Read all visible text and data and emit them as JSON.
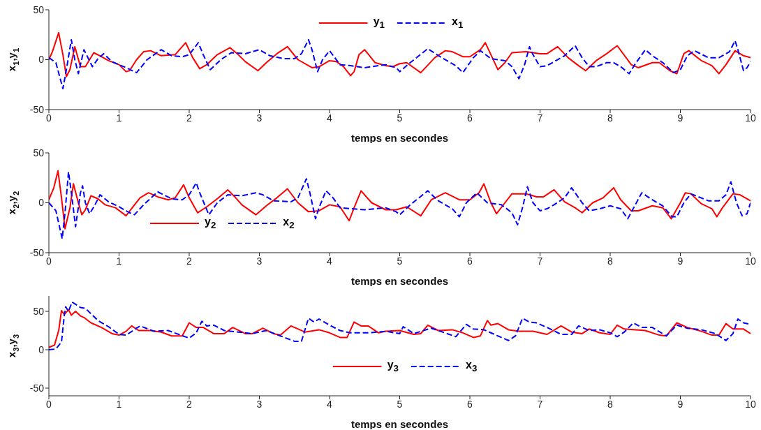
{
  "chart_data": [
    {
      "type": "line",
      "xlabel": "temps en secondes",
      "ylabel": "x$_{1}$,y$_{1}$",
      "xlim": [
        0,
        10
      ],
      "xticks": [
        0,
        1,
        2,
        3,
        4,
        5,
        6,
        7,
        8,
        9,
        10
      ],
      "ylim": [
        -50,
        50
      ],
      "yticks": [
        -50,
        0,
        50
      ],
      "grid": false,
      "legend": "top",
      "series": [
        {
          "name": "y$_{1}$",
          "color": "#ff0000",
          "line_style": "solid",
          "x": [
            0,
            0.05,
            0.14,
            0.2,
            0.25,
            0.3,
            0.37,
            0.45,
            0.52,
            0.64,
            0.75,
            0.85,
            1.0,
            1.1,
            1.15,
            1.25,
            1.35,
            1.45,
            1.6,
            1.8,
            1.95,
            2.05,
            2.15,
            2.25,
            2.4,
            2.58,
            2.7,
            2.8,
            2.98,
            3.1,
            3.25,
            3.4,
            3.55,
            3.75,
            3.85,
            4.0,
            4.1,
            4.2,
            4.3,
            4.35,
            4.42,
            4.5,
            4.65,
            4.8,
            4.9,
            5.0,
            5.1,
            5.3,
            5.5,
            5.65,
            5.75,
            5.9,
            6.0,
            6.15,
            6.22,
            6.3,
            6.4,
            6.5,
            6.6,
            6.8,
            7.0,
            7.1,
            7.25,
            7.4,
            7.55,
            7.65,
            7.8,
            7.95,
            8.1,
            8.3,
            8.4,
            8.6,
            8.7,
            8.85,
            8.95,
            9.05,
            9.12,
            9.3,
            9.45,
            9.55,
            9.65,
            9.78,
            9.9,
            10
          ],
          "values": [
            0,
            8,
            27,
            5,
            -17,
            -10,
            13,
            -7,
            -7,
            7,
            3,
            -1,
            -5,
            -12,
            -11,
            0,
            8,
            9,
            4,
            5,
            17,
            2,
            -9,
            -5,
            5,
            12,
            5,
            -2,
            -11,
            -3,
            6,
            13,
            0,
            -8,
            -7,
            -1,
            -2,
            -7,
            -16,
            -12,
            5,
            10,
            -3,
            -6,
            -7,
            -4,
            -3,
            -13,
            2,
            9,
            8,
            3,
            3,
            10,
            17,
            5,
            -10,
            -3,
            7,
            8,
            6,
            6,
            13,
            2,
            -6,
            -11,
            -1,
            6,
            14,
            -5,
            -8,
            -3,
            -3,
            -11,
            -14,
            6,
            9,
            -1,
            -6,
            -14,
            -5,
            9,
            4,
            2
          ]
        },
        {
          "name": "x$_{1}$",
          "color": "#0000ff",
          "line_style": "dashed",
          "x": [
            0,
            0.1,
            0.2,
            0.25,
            0.32,
            0.37,
            0.42,
            0.5,
            0.55,
            0.62,
            0.7,
            0.78,
            0.9,
            1.0,
            1.1,
            1.25,
            1.4,
            1.6,
            1.75,
            1.9,
            2.0,
            2.13,
            2.2,
            2.3,
            2.45,
            2.6,
            2.8,
            3.0,
            3.15,
            3.35,
            3.5,
            3.6,
            3.7,
            3.75,
            3.83,
            3.9,
            4.0,
            4.15,
            4.3,
            4.5,
            4.8,
            4.95,
            5.0,
            5.15,
            5.4,
            5.6,
            5.8,
            5.9,
            6.05,
            6.15,
            6.3,
            6.5,
            6.6,
            6.7,
            6.78,
            6.85,
            6.9,
            7.0,
            7.1,
            7.2,
            7.35,
            7.5,
            7.6,
            7.7,
            7.8,
            7.95,
            8.05,
            8.15,
            8.27,
            8.35,
            8.5,
            8.6,
            8.75,
            8.9,
            9.0,
            9.1,
            9.2,
            9.4,
            9.55,
            9.7,
            9.78,
            9.82,
            9.9,
            9.95,
            10
          ],
          "values": [
            2,
            -3,
            -29,
            -10,
            20,
            0,
            -14,
            10,
            3,
            -7,
            1,
            6,
            -2,
            -5,
            -8,
            -13,
            0,
            10,
            4,
            3,
            5,
            17,
            5,
            -10,
            0,
            7,
            6,
            10,
            4,
            1,
            1,
            6,
            20,
            10,
            -12,
            0,
            9,
            -5,
            -6,
            -8,
            -5,
            -8,
            -12,
            -3,
            11,
            2,
            -6,
            -13,
            2,
            9,
            1,
            -1,
            -7,
            -19,
            -5,
            13,
            5,
            -7,
            -6,
            -2,
            4,
            14,
            2,
            -7,
            -7,
            -3,
            -3,
            -7,
            -14,
            -5,
            10,
            4,
            -3,
            -13,
            -10,
            4,
            9,
            2,
            2,
            8,
            19,
            10,
            -11,
            -8,
            -2
          ]
        }
      ]
    },
    {
      "type": "line",
      "xlabel": "temps en secondes",
      "ylabel": "x$_{2}$,y$_{2}$",
      "xlim": [
        0,
        10
      ],
      "xticks": [
        0,
        1,
        2,
        3,
        4,
        5,
        6,
        7,
        8,
        9,
        10
      ],
      "ylim": [
        -50,
        50
      ],
      "yticks": [
        -50,
        0,
        50
      ],
      "grid": false,
      "legend": "bottom left",
      "series": [
        {
          "name": "y$_{2}$",
          "color": "#ff0000",
          "line_style": "solid",
          "x": [
            0,
            0.07,
            0.13,
            0.18,
            0.23,
            0.3,
            0.35,
            0.42,
            0.47,
            0.52,
            0.6,
            0.7,
            0.8,
            0.95,
            1.1,
            1.2,
            1.3,
            1.42,
            1.55,
            1.7,
            1.8,
            1.92,
            2.0,
            2.12,
            2.25,
            2.4,
            2.55,
            2.65,
            2.75,
            2.95,
            3.1,
            3.25,
            3.4,
            3.55,
            3.7,
            3.85,
            4.0,
            4.15,
            4.28,
            4.35,
            4.45,
            4.6,
            4.8,
            4.95,
            5.1,
            5.3,
            5.45,
            5.65,
            5.85,
            6.0,
            6.13,
            6.2,
            6.3,
            6.38,
            6.5,
            6.6,
            6.8,
            6.95,
            7.05,
            7.2,
            7.35,
            7.5,
            7.6,
            7.75,
            7.9,
            8.05,
            8.15,
            8.3,
            8.4,
            8.6,
            8.75,
            8.87,
            9.0,
            9.07,
            9.15,
            9.3,
            9.45,
            9.52,
            9.6,
            9.75,
            9.85,
            10
          ],
          "values": [
            3,
            15,
            32,
            5,
            -26,
            -5,
            19,
            0,
            -12,
            -7,
            7,
            4,
            -2,
            -5,
            -13,
            -4,
            5,
            10,
            6,
            3,
            5,
            18,
            5,
            -10,
            -4,
            4,
            13,
            6,
            -2,
            -12,
            -3,
            5,
            14,
            0,
            -9,
            -8,
            -2,
            -4,
            -18,
            -5,
            12,
            0,
            -7,
            -7,
            -4,
            -13,
            3,
            10,
            3,
            3,
            10,
            19,
            0,
            -11,
            0,
            9,
            9,
            6,
            6,
            13,
            1,
            -5,
            -10,
            0,
            5,
            15,
            3,
            -8,
            -8,
            -3,
            -5,
            -16,
            0,
            10,
            9,
            -1,
            -6,
            -14,
            -5,
            9,
            8,
            2
          ]
        },
        {
          "name": "x$_{2}$",
          "color": "#0000ff",
          "line_style": "dashed",
          "x": [
            0,
            0.1,
            0.19,
            0.23,
            0.28,
            0.33,
            0.38,
            0.45,
            0.48,
            0.52,
            0.58,
            0.65,
            0.73,
            0.85,
            1.0,
            1.15,
            1.22,
            1.35,
            1.55,
            1.75,
            1.9,
            2.0,
            2.1,
            2.15,
            2.28,
            2.4,
            2.55,
            2.75,
            2.95,
            3.05,
            3.2,
            3.45,
            3.55,
            3.67,
            3.72,
            3.8,
            3.85,
            3.95,
            4.05,
            4.15,
            4.5,
            4.8,
            4.95,
            5.0,
            5.15,
            5.4,
            5.55,
            5.75,
            5.85,
            5.95,
            6.1,
            6.25,
            6.45,
            6.6,
            6.68,
            6.75,
            6.82,
            6.9,
            7.0,
            7.1,
            7.2,
            7.35,
            7.45,
            7.6,
            7.7,
            7.85,
            8.0,
            8.15,
            8.25,
            8.35,
            8.45,
            8.6,
            8.75,
            8.88,
            8.95,
            9.05,
            9.15,
            9.4,
            9.55,
            9.65,
            9.72,
            9.8,
            9.88,
            9.95,
            10
          ],
          "values": [
            0,
            -8,
            -36,
            -10,
            31,
            5,
            -24,
            10,
            17,
            0,
            -11,
            -3,
            8,
            1,
            -4,
            -10,
            -12,
            -2,
            11,
            4,
            3,
            8,
            20,
            10,
            -12,
            0,
            8,
            7,
            10,
            8,
            2,
            1,
            5,
            24,
            10,
            -16,
            -5,
            12,
            5,
            -5,
            -7,
            -5,
            -9,
            -12,
            -2,
            12,
            2,
            -6,
            -14,
            0,
            10,
            0,
            -2,
            -10,
            -22,
            -5,
            16,
            0,
            -8,
            -6,
            -2,
            5,
            15,
            0,
            -8,
            -6,
            -3,
            -6,
            -16,
            -3,
            10,
            3,
            -3,
            -14,
            -14,
            0,
            9,
            2,
            2,
            8,
            21,
            0,
            -13,
            -11,
            0
          ]
        }
      ]
    },
    {
      "type": "line",
      "xlabel": "temps en secondes",
      "ylabel": "x$_{3}$,y$_{3}$",
      "xlim": [
        0,
        10
      ],
      "xticks": [
        0,
        1,
        2,
        3,
        4,
        5,
        6,
        7,
        8,
        9,
        10
      ],
      "ylim": [
        -60,
        70
      ],
      "yticks": [
        -50,
        0,
        50
      ],
      "grid": false,
      "legend": "bottom",
      "series": [
        {
          "name": "y$_{3}$",
          "color": "#ff0000",
          "line_style": "solid",
          "x": [
            0,
            0.08,
            0.14,
            0.18,
            0.22,
            0.28,
            0.32,
            0.38,
            0.45,
            0.5,
            0.6,
            0.75,
            0.9,
            1.0,
            1.1,
            1.18,
            1.28,
            1.45,
            1.6,
            1.75,
            1.9,
            2.0,
            2.1,
            2.2,
            2.35,
            2.5,
            2.62,
            2.8,
            2.9,
            3.05,
            3.2,
            3.3,
            3.45,
            3.65,
            3.85,
            4.0,
            4.15,
            4.25,
            4.35,
            4.45,
            4.55,
            4.7,
            4.8,
            5.0,
            5.2,
            5.3,
            5.4,
            5.55,
            5.75,
            5.9,
            6.05,
            6.15,
            6.25,
            6.3,
            6.4,
            6.55,
            6.7,
            6.9,
            7.1,
            7.3,
            7.45,
            7.6,
            7.7,
            7.85,
            8.0,
            8.1,
            8.2,
            8.5,
            8.7,
            8.8,
            8.95,
            9.1,
            9.3,
            9.45,
            9.55,
            9.65,
            9.75,
            9.9,
            10
          ],
          "values": [
            3,
            6,
            25,
            51,
            46,
            52,
            45,
            50,
            44,
            42,
            35,
            29,
            21,
            19,
            24,
            31,
            25,
            25,
            23,
            18,
            18,
            35,
            29,
            29,
            21,
            21,
            29,
            21,
            21,
            28,
            21,
            19,
            31,
            23,
            26,
            22,
            16,
            16,
            36,
            31,
            31,
            22,
            24,
            25,
            20,
            21,
            32,
            25,
            26,
            22,
            16,
            18,
            38,
            32,
            34,
            26,
            24,
            24,
            20,
            31,
            23,
            21,
            27,
            22,
            20,
            32,
            27,
            25,
            19,
            18,
            35,
            29,
            24,
            19,
            19,
            34,
            27,
            27,
            21
          ]
        },
        {
          "name": "x$_{3}$",
          "color": "#0000ff",
          "line_style": "dashed",
          "x": [
            0,
            0.1,
            0.18,
            0.22,
            0.24,
            0.28,
            0.33,
            0.4,
            0.45,
            0.52,
            0.7,
            0.85,
            1.0,
            1.1,
            1.2,
            1.3,
            1.5,
            1.7,
            1.85,
            2.0,
            2.1,
            2.18,
            2.25,
            2.35,
            2.5,
            2.7,
            2.9,
            3.1,
            3.3,
            3.5,
            3.6,
            3.7,
            3.78,
            3.85,
            4.0,
            4.15,
            4.3,
            4.55,
            4.8,
            5.0,
            5.05,
            5.2,
            5.45,
            5.55,
            5.8,
            5.95,
            6.05,
            6.2,
            6.35,
            6.55,
            6.65,
            6.75,
            6.85,
            6.95,
            7.1,
            7.3,
            7.45,
            7.55,
            7.7,
            7.85,
            8.0,
            8.1,
            8.2,
            8.33,
            8.45,
            8.6,
            8.8,
            8.95,
            9.1,
            9.3,
            9.5,
            9.65,
            9.75,
            9.82,
            9.9,
            10
          ],
          "values": [
            0,
            1,
            10,
            45,
            56,
            50,
            62,
            58,
            55,
            54,
            38,
            30,
            20,
            19,
            25,
            31,
            24,
            25,
            20,
            15,
            22,
            37,
            31,
            32,
            25,
            23,
            21,
            25,
            18,
            11,
            11,
            41,
            36,
            40,
            32,
            25,
            22,
            22,
            24,
            21,
            30,
            21,
            28,
            25,
            17,
            33,
            27,
            26,
            20,
            12,
            18,
            41,
            36,
            35,
            29,
            20,
            20,
            31,
            25,
            26,
            22,
            17,
            23,
            35,
            29,
            29,
            18,
            32,
            28,
            26,
            21,
            12,
            21,
            40,
            35,
            33
          ]
        }
      ]
    }
  ]
}
